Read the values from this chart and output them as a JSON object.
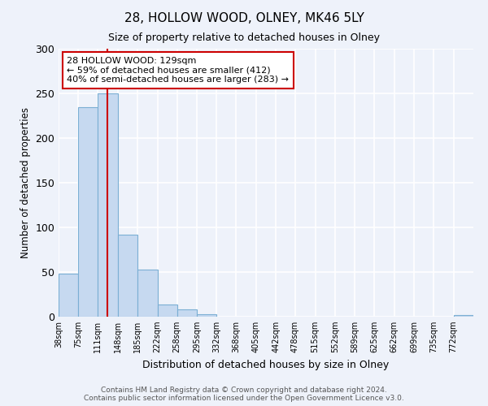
{
  "title": "28, HOLLOW WOOD, OLNEY, MK46 5LY",
  "subtitle": "Size of property relative to detached houses in Olney",
  "xlabel": "Distribution of detached houses by size in Olney",
  "ylabel": "Number of detached properties",
  "bar_labels": [
    "38sqm",
    "75sqm",
    "111sqm",
    "148sqm",
    "185sqm",
    "222sqm",
    "258sqm",
    "295sqm",
    "332sqm",
    "368sqm",
    "405sqm",
    "442sqm",
    "478sqm",
    "515sqm",
    "552sqm",
    "589sqm",
    "625sqm",
    "662sqm",
    "699sqm",
    "735sqm",
    "772sqm"
  ],
  "bar_values": [
    48,
    235,
    250,
    92,
    53,
    14,
    8,
    3,
    0,
    0,
    0,
    0,
    0,
    0,
    0,
    0,
    0,
    0,
    0,
    0,
    2
  ],
  "bar_color": "#c6d9f0",
  "bar_edge_color": "#7bafd4",
  "ylim": [
    0,
    300
  ],
  "yticks": [
    0,
    50,
    100,
    150,
    200,
    250,
    300
  ],
  "red_line_color": "#cc0000",
  "annotation_title": "28 HOLLOW WOOD: 129sqm",
  "annotation_line1": "← 59% of detached houses are smaller (412)",
  "annotation_line2": "40% of semi-detached houses are larger (283) →",
  "annotation_box_color": "#ffffff",
  "annotation_box_edge": "#cc0000",
  "footer_line1": "Contains HM Land Registry data © Crown copyright and database right 2024.",
  "footer_line2": "Contains public sector information licensed under the Open Government Licence v3.0.",
  "background_color": "#eef2fa",
  "grid_color": "#ffffff",
  "bin_edges": [
    38,
    75,
    111,
    148,
    185,
    222,
    258,
    295,
    332,
    368,
    405,
    442,
    478,
    515,
    552,
    589,
    625,
    662,
    699,
    735,
    772,
    809
  ],
  "red_line_x": 129
}
